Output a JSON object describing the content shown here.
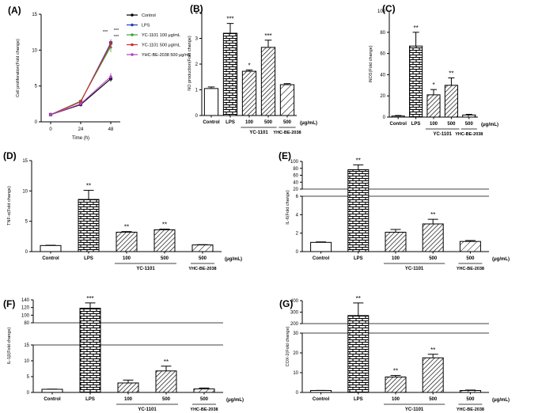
{
  "chart_data": [
    {
      "id": "A",
      "panel_label": "(A)",
      "type": "line",
      "ylabel": "Cell proliferation(Fold change)",
      "xlabel": "Time (h)",
      "ylim": [
        0,
        15
      ],
      "yticks": [
        "0",
        "5",
        "10",
        "15"
      ],
      "x": [
        "0",
        "24",
        "48"
      ],
      "series": [
        {
          "name": "Control",
          "color": "#000000",
          "marker": "circle",
          "values": [
            1,
            2.4,
            6.0
          ],
          "errors": [
            0.1,
            0.2,
            0.4
          ]
        },
        {
          "name": "LPS",
          "color": "#1f3fbf",
          "marker": "square",
          "values": [
            1,
            2.8,
            11.0
          ],
          "errors": [
            0.1,
            0.2,
            0.5
          ]
        },
        {
          "name": "YC-1101 100 μg/mL",
          "color": "#3aa63a",
          "marker": "triangle",
          "values": [
            1,
            2.9,
            10.5
          ],
          "errors": [
            0.1,
            0.2,
            0.8
          ]
        },
        {
          "name": "YC-1101 500 μg/mL",
          "color": "#d42a2a",
          "marker": "triangle-down",
          "values": [
            1,
            2.8,
            10.8
          ],
          "errors": [
            0.1,
            0.2,
            0.6
          ]
        },
        {
          "name": "YHC-BE-2038 500 μg/mL",
          "color": "#b040c8",
          "marker": "diamond",
          "values": [
            1,
            2.5,
            6.3
          ],
          "errors": [
            0.1,
            0.2,
            0.5
          ]
        }
      ],
      "annotations": [
        "***",
        "***",
        "***"
      ]
    },
    {
      "id": "B",
      "panel_label": "(B)",
      "type": "bar",
      "ylabel": "NO production(Fold change)",
      "ylim": [
        0,
        4
      ],
      "yticks": [
        "0",
        "1",
        "2",
        "3",
        "4"
      ],
      "categories": [
        "Control",
        "LPS",
        "100",
        "500",
        "500"
      ],
      "values": [
        1.05,
        3.2,
        1.72,
        2.65,
        1.2
      ],
      "errors": [
        0.06,
        0.38,
        0.05,
        0.28,
        0.04
      ],
      "significance": [
        "",
        "***",
        "*",
        "***",
        ""
      ],
      "unit_label": "(μg/mL)",
      "group_label": "YC-1101",
      "other_label": "YHC-BE-2038"
    },
    {
      "id": "C",
      "panel_label": "(C)",
      "type": "bar",
      "ylabel": "iNOS(Fold change)",
      "ylim": [
        0,
        100
      ],
      "yticks": [
        "0",
        "20",
        "40",
        "60",
        "80",
        "100"
      ],
      "categories": [
        "Control",
        "LPS",
        "100",
        "500",
        "500"
      ],
      "values": [
        1,
        67,
        21,
        30,
        2
      ],
      "errors": [
        0.5,
        13,
        5,
        7,
        0.6
      ],
      "significance": [
        "",
        "**",
        "*",
        "**",
        ""
      ],
      "unit_label": "(μg/mL)",
      "group_label": "YC-1101",
      "other_label": "YHC-BE-2038"
    },
    {
      "id": "D",
      "panel_label": "(D)",
      "type": "bar",
      "ylabel": "TNF-α(Fold change)",
      "ylim": [
        0,
        15
      ],
      "yticks": [
        "0",
        "5",
        "10",
        "15"
      ],
      "categories": [
        "Control",
        "LPS",
        "100",
        "500",
        "500"
      ],
      "values": [
        1,
        8.6,
        3.2,
        3.6,
        1.1
      ],
      "errors": [
        0.05,
        1.5,
        0.1,
        0.1,
        0.05
      ],
      "significance": [
        "",
        "**",
        "**",
        "**",
        ""
      ],
      "unit_label": "(μg/mL)",
      "group_label": "YC-1101",
      "other_label": "YHC-BE-2038"
    },
    {
      "id": "E",
      "panel_label": "(E)",
      "type": "bar",
      "ylabel": "IL-6(Fold change)",
      "ylim": [
        0,
        100
      ],
      "yticks": [
        "0",
        "2",
        "4",
        "6",
        "20",
        "40",
        "60",
        "80",
        "100"
      ],
      "categories": [
        "Control",
        "LPS",
        "100",
        "500",
        "500"
      ],
      "values": [
        1,
        76,
        2.1,
        3.0,
        1.1
      ],
      "errors": [
        0.05,
        14,
        0.3,
        0.5,
        0.1
      ],
      "significance": [
        "",
        "**",
        "",
        "**",
        ""
      ],
      "unit_label": "(μg/mL)",
      "group_label": "YC-1101",
      "other_label": "YHC-BE-2038"
    },
    {
      "id": "F",
      "panel_label": "(F)",
      "type": "bar",
      "ylabel": "IL-1β(Fold change)",
      "ylim": [
        0,
        140
      ],
      "yticks": [
        "0",
        "5",
        "10",
        "15",
        "80",
        "100",
        "120",
        "140"
      ],
      "categories": [
        "Control",
        "LPS",
        "100",
        "500",
        "500"
      ],
      "values": [
        1,
        118,
        3.0,
        6.8,
        1.1
      ],
      "errors": [
        0.05,
        14,
        0.9,
        1.5,
        0.3
      ],
      "significance": [
        "",
        "***",
        "",
        "**",
        ""
      ],
      "unit_label": "(μg/mL)",
      "group_label": "YC-1101",
      "other_label": "YHC-BE-2038"
    },
    {
      "id": "G",
      "panel_label": "(G)",
      "type": "bar",
      "ylabel": "COX-2(Fold change)",
      "ylim": [
        0,
        400
      ],
      "yticks": [
        "0",
        "10",
        "20",
        "30",
        "200",
        "300",
        "400"
      ],
      "categories": [
        "Control",
        "LPS",
        "100",
        "500",
        "500"
      ],
      "values": [
        1,
        270,
        7.8,
        17.5,
        1.0
      ],
      "errors": [
        0.05,
        110,
        0.8,
        1.8,
        0.2
      ],
      "significance": [
        "",
        "**",
        "**",
        "**",
        ""
      ],
      "unit_label": "(μg/mL)",
      "group_label": "YC-1101",
      "other_label": "YHC-BE-2038"
    }
  ]
}
